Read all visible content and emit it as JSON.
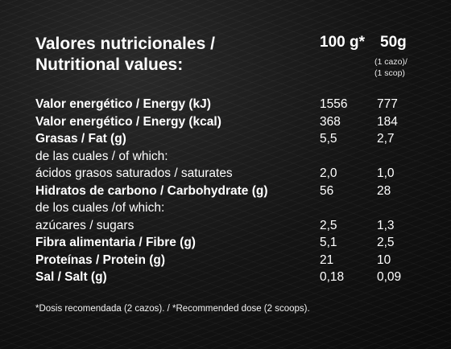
{
  "header": {
    "title_line1": "Valores nutricionales /",
    "title_line2": "Nutritional values:",
    "col_100g": "100 g*",
    "col_50g": "50g",
    "serving_line1": "(1 cazo)/",
    "serving_line2": "(1 scop)"
  },
  "rows": [
    {
      "label": "Valor energético / Energy (kJ)",
      "bold": true,
      "v100": "1556",
      "v50": "777"
    },
    {
      "label": "Valor energético / Energy (kcal)",
      "bold": true,
      "v100": "368",
      "v50": "184"
    },
    {
      "label": "Grasas / Fat (g)",
      "bold": true,
      "v100": "5,5",
      "v50": "2,7"
    },
    {
      "label": "de las cuales / of which:",
      "bold": false,
      "v100": "",
      "v50": ""
    },
    {
      "label": "ácidos grasos saturados / saturates",
      "bold": false,
      "v100": "2,0",
      "v50": "1,0"
    },
    {
      "label": "Hidratos de carbono / Carbohydrate (g)",
      "bold": true,
      "v100": "56",
      "v50": "28"
    },
    {
      "label": "de los cuales /of which:",
      "bold": false,
      "v100": "",
      "v50": ""
    },
    {
      "label": "azúcares /  sugars",
      "bold": false,
      "v100": "2,5",
      "v50": "1,3"
    },
    {
      "label": "Fibra alimentaria / Fibre (g)",
      "bold": true,
      "v100": "5,1",
      "v50": "2,5"
    },
    {
      "label": "Proteínas / Protein (g)",
      "bold": true,
      "v100": "21",
      "v50": "10"
    },
    {
      "label": "Sal / Salt  (g)",
      "bold": true,
      "v100": "0,18",
      "v50": "0,09"
    }
  ],
  "footnote": "*Dosis recomendada (2 cazos). / *Recommended dose (2 scoops)."
}
